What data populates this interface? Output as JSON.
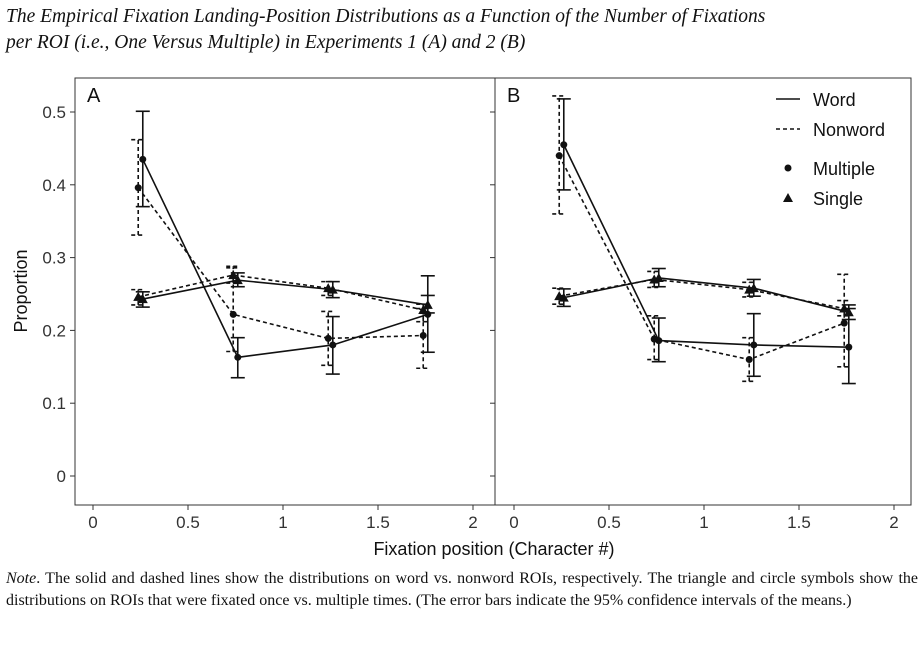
{
  "figure": {
    "title_line1": "The Empirical Fixation Landing-Position Distributions as a Function of the Number of Fixations",
    "title_line2": "per ROI (i.e., One Versus Multiple) in Experiments 1 (A) and 2 (B)",
    "note_label": "Note",
    "note_text": ".   The solid and dashed lines show the distributions on word vs. nonword ROIs, respectively. The triangle and circle symbols show the distributions on ROIs that were fixated once vs. multiple times. (The error bars indicate the 95% confidence intervals of the means.)"
  },
  "chart_data": [
    {
      "type": "line",
      "panel_label": "A",
      "xlabel": "Fixation position (Character #)",
      "ylabel": "Proportion",
      "xlim": [
        0,
        2
      ],
      "ylim": [
        0,
        0.5
      ],
      "xticks": [
        "0",
        "0.5",
        "1",
        "1.5",
        "2"
      ],
      "yticks": [
        "0",
        "0.1",
        "0.2",
        "0.3",
        "0.4",
        "0.5"
      ],
      "grid": false,
      "x": [
        0.25,
        0.75,
        1.25,
        1.75
      ],
      "series": [
        {
          "name": "Word Multiple",
          "line": "solid",
          "marker": "circle",
          "values": [
            0.435,
            0.163,
            0.18,
            0.222
          ],
          "ci_low": [
            0.37,
            0.135,
            0.14,
            0.17
          ],
          "ci_high": [
            0.501,
            0.19,
            0.219,
            0.275
          ]
        },
        {
          "name": "Nonword Multiple",
          "line": "dashed",
          "marker": "circle",
          "values": [
            0.396,
            0.222,
            0.189,
            0.193
          ],
          "ci_low": [
            0.331,
            0.171,
            0.152,
            0.148
          ],
          "ci_high": [
            0.462,
            0.288,
            0.226,
            0.23
          ]
        },
        {
          "name": "Word Single",
          "line": "solid",
          "marker": "triangle",
          "values": [
            0.243,
            0.269,
            0.256,
            0.235
          ],
          "ci_low": [
            0.232,
            0.26,
            0.245,
            0.224
          ],
          "ci_high": [
            0.253,
            0.279,
            0.267,
            0.248
          ]
        },
        {
          "name": "Nonword Single",
          "line": "dashed",
          "marker": "triangle",
          "values": [
            0.246,
            0.276,
            0.258,
            0.228
          ],
          "ci_low": [
            0.235,
            0.265,
            0.248,
            0.212
          ],
          "ci_high": [
            0.256,
            0.286,
            0.267,
            0.236
          ]
        }
      ]
    },
    {
      "type": "line",
      "panel_label": "B",
      "xlim": [
        0,
        2
      ],
      "ylim": [
        0,
        0.5
      ],
      "xticks": [
        "0",
        "0.5",
        "1",
        "1.5",
        "2"
      ],
      "grid": false,
      "legend": {
        "position": "top-right",
        "items": [
          "Word",
          "Nonword",
          "Multiple",
          "Single"
        ]
      },
      "x": [
        0.25,
        0.75,
        1.25,
        1.75
      ],
      "series": [
        {
          "name": "Word Multiple",
          "line": "solid",
          "marker": "circle",
          "values": [
            0.455,
            0.186,
            0.18,
            0.177
          ],
          "ci_low": [
            0.393,
            0.157,
            0.137,
            0.127
          ],
          "ci_high": [
            0.518,
            0.217,
            0.223,
            0.23
          ]
        },
        {
          "name": "Nonword Multiple",
          "line": "dashed",
          "marker": "circle",
          "values": [
            0.44,
            0.188,
            0.16,
            0.21
          ],
          "ci_low": [
            0.36,
            0.16,
            0.13,
            0.15
          ],
          "ci_high": [
            0.522,
            0.22,
            0.19,
            0.277
          ]
        },
        {
          "name": "Word Single",
          "line": "solid",
          "marker": "triangle",
          "values": [
            0.245,
            0.272,
            0.258,
            0.225
          ],
          "ci_low": [
            0.233,
            0.26,
            0.247,
            0.215
          ],
          "ci_high": [
            0.257,
            0.285,
            0.27,
            0.235
          ]
        },
        {
          "name": "Nonword Single",
          "line": "dashed",
          "marker": "triangle",
          "values": [
            0.247,
            0.27,
            0.256,
            0.23
          ],
          "ci_low": [
            0.236,
            0.259,
            0.246,
            0.22
          ],
          "ci_high": [
            0.258,
            0.281,
            0.266,
            0.241
          ]
        }
      ]
    }
  ]
}
